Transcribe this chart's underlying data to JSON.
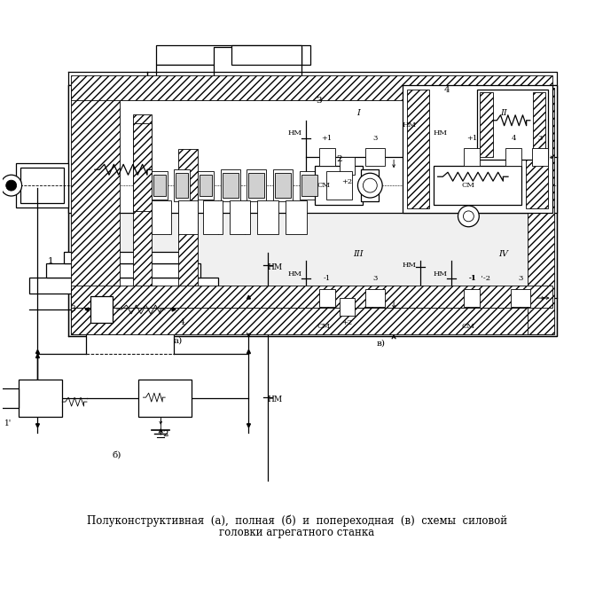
{
  "title_line1": "Полуконструктивная  (а),  полная  (б)  и  попереходная  (в)  схемы  силовой",
  "title_line2": "головки агрегатного станка",
  "bg_color": "#ffffff",
  "lc": "#000000",
  "label_a": "а)",
  "label_b": "б)",
  "label_v": "в)",
  "nm": "НМ",
  "sm": "СМ",
  "roman": [
    "I",
    "II",
    "III",
    "IV"
  ],
  "fs_title": 8.5,
  "fs_label": 7.5,
  "fs_small": 6.5,
  "fs_tiny": 6
}
